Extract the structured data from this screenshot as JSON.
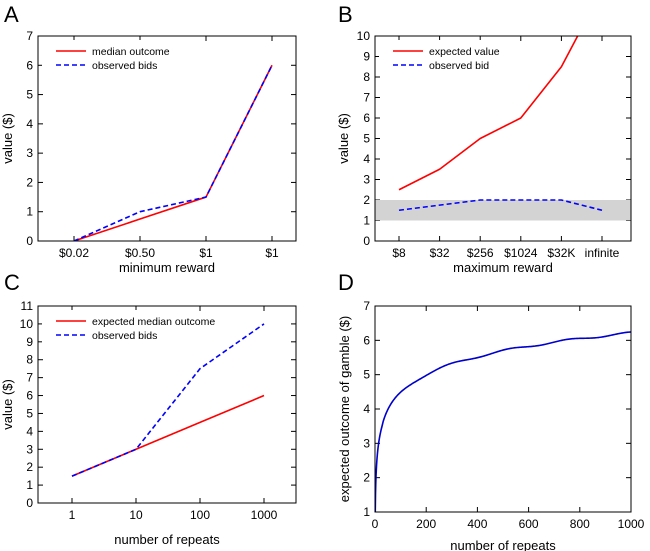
{
  "chart_data": [
    {
      "panel": "A",
      "type": "line",
      "xlabel": "minimum reward",
      "ylabel": "value ($)",
      "categories": [
        "$0.02",
        "$0.50",
        "$1",
        "$1"
      ],
      "ylim": [
        0,
        7
      ],
      "yticks": [
        0,
        1,
        2,
        3,
        4,
        5,
        6,
        7
      ],
      "legend_position": "top-left",
      "series": [
        {
          "name": "median outcome",
          "color": "#ff0000",
          "dash": "solid",
          "values": [
            0,
            0.75,
            1.5,
            6
          ]
        },
        {
          "name": "observed bids",
          "color": "#0000ff",
          "dash": "dashed",
          "values": [
            0,
            1.0,
            1.5,
            6
          ]
        }
      ]
    },
    {
      "panel": "B",
      "type": "line",
      "xlabel": "maximum reward",
      "ylabel": "value ($)",
      "categories": [
        "$8",
        "$32",
        "$256",
        "$1024",
        "$32K",
        "infinite"
      ],
      "ylim": [
        0,
        10
      ],
      "yticks": [
        0,
        1,
        2,
        3,
        4,
        5,
        6,
        7,
        8,
        9,
        10
      ],
      "legend_position": "top-left",
      "shaded_band": {
        "y0": 1,
        "y1": 2,
        "color": "#d3d3d3"
      },
      "series": [
        {
          "name": "expected value",
          "color": "#ff0000",
          "dash": "solid",
          "x": [
            0,
            1,
            2,
            3,
            4,
            4.4
          ],
          "values": [
            2.5,
            3.5,
            5.0,
            6.0,
            8.5,
            10
          ]
        },
        {
          "name": "observed bid",
          "color": "#0000ff",
          "dash": "dashed",
          "x": [
            0,
            1,
            2,
            3,
            4,
            5
          ],
          "values": [
            1.5,
            1.75,
            2.0,
            2.0,
            2.0,
            1.5
          ]
        }
      ]
    },
    {
      "panel": "C",
      "type": "line",
      "xlabel": "number of repeats",
      "ylabel": "value ($)",
      "categories": [
        "1",
        "10",
        "100",
        "1000"
      ],
      "xscale": "log",
      "ylim": [
        0,
        11
      ],
      "yticks": [
        0,
        1,
        2,
        3,
        4,
        5,
        6,
        7,
        8,
        9,
        10,
        11
      ],
      "legend_position": "top-left",
      "series": [
        {
          "name": "expected median outcome",
          "color": "#ff0000",
          "dash": "solid",
          "values": [
            1.5,
            3.0,
            4.5,
            6.0
          ]
        },
        {
          "name": "observed bids",
          "color": "#0000ff",
          "dash": "dashed",
          "values": [
            1.5,
            3.0,
            7.5,
            10.0
          ]
        }
      ]
    },
    {
      "panel": "D",
      "type": "line",
      "xlabel": "number of repeats",
      "ylabel": "expected outcome of gamble ($)",
      "xlim": [
        0,
        1000
      ],
      "xticks": [
        0,
        200,
        400,
        600,
        800,
        1000
      ],
      "ylim": [
        1,
        7
      ],
      "yticks": [
        1,
        2,
        3,
        4,
        5,
        6,
        7
      ],
      "series": [
        {
          "color": "#0000cc",
          "dash": "solid",
          "formula": "1 + 0.755*ln(x)",
          "x_range": [
            1,
            1000
          ]
        }
      ]
    }
  ]
}
